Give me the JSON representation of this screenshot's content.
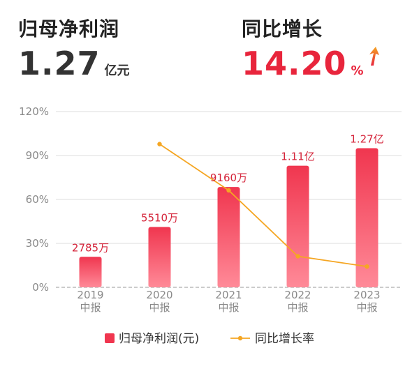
{
  "kpis": [
    {
      "label": "归母净利润",
      "value": "1.27",
      "unit": "亿元"
    },
    {
      "label": "同比增长",
      "value": "14.20",
      "unit": "%",
      "trend_icon": "up-arrow-icon"
    }
  ],
  "colors": {
    "bar": "#f0364f",
    "bar_light": "#ff8a98",
    "line": "#f5a623",
    "label": "#d5243a",
    "grid": "#dddddd",
    "axis_text": "#8a8a8a"
  },
  "chart_data": {
    "type": "bar",
    "categories": [
      [
        "2019",
        "中报"
      ],
      [
        "2020",
        "中报"
      ],
      [
        "2021",
        "中报"
      ],
      [
        "2022",
        "中报"
      ],
      [
        "2023",
        "中报"
      ]
    ],
    "y_ticks": [
      "0%",
      "30%",
      "60%",
      "90%",
      "120%"
    ],
    "ylim": [
      0,
      120
    ],
    "grid": true,
    "legend_position": "bottom",
    "series": [
      {
        "name": "归母净利润(元)",
        "type": "bar",
        "values_display": [
          "2785万",
          "5510万",
          "9160万",
          "1.11亿",
          "1.27亿"
        ],
        "values": [
          0.2785,
          0.551,
          0.916,
          1.11,
          1.27
        ],
        "unit": "亿元"
      },
      {
        "name": "同比增长率",
        "type": "line",
        "values": [
          null,
          97.8,
          66.2,
          21.2,
          14.2
        ],
        "unit": "%"
      }
    ]
  }
}
